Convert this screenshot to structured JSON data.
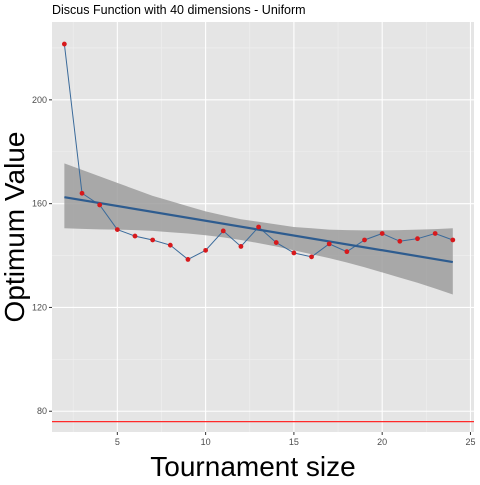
{
  "chart_data": {
    "type": "line",
    "title": "Discus Function with 40 dimensions -  Uniform",
    "xlabel": "Tournament size",
    "ylabel": "Optimum Value",
    "xlim": [
      1.3,
      25.2
    ],
    "ylim": [
      72,
      230
    ],
    "x_ticks": [
      5,
      10,
      15,
      20,
      25
    ],
    "y_ticks": [
      80,
      120,
      160,
      200
    ],
    "grid": true,
    "legend": "none",
    "series": [
      {
        "x": [
          2,
          3,
          4,
          5,
          6,
          7,
          8,
          9,
          10,
          11,
          12,
          13,
          14,
          15,
          16,
          17,
          18,
          19,
          20,
          21,
          22,
          23,
          24
        ],
        "values": [
          221.5,
          164,
          159.5,
          150,
          147.5,
          146,
          144,
          138.5,
          142,
          149.5,
          143.5,
          151,
          145,
          141,
          139.5,
          144.5,
          141.5,
          146,
          148.5,
          145.5,
          146.5,
          148.5,
          146
        ]
      }
    ],
    "trend": {
      "x": [
        2,
        24
      ],
      "values": [
        162.5,
        137.5
      ]
    },
    "confidence_band": {
      "x": [
        2,
        3,
        4,
        5,
        6,
        7,
        8,
        9,
        10,
        11,
        12,
        13,
        14,
        15,
        16,
        17,
        18,
        19,
        20,
        21,
        22,
        23,
        24
      ],
      "upper": [
        175.5,
        173,
        170.5,
        168,
        165.5,
        163,
        161,
        159,
        157,
        155.5,
        154,
        153,
        152,
        151,
        150.5,
        150,
        149.8,
        149.7,
        149.7,
        149.8,
        150,
        150.2,
        150.5
      ],
      "lower": [
        150.5,
        150.3,
        150.1,
        150,
        149.8,
        149.5,
        149,
        148.5,
        147.8,
        147,
        146,
        144.8,
        143.5,
        142,
        140.5,
        139,
        137.3,
        135.5,
        133.5,
        131.5,
        129.5,
        127.3,
        125
      ]
    },
    "reference_line": {
      "y": 76
    },
    "colors": {
      "panel": "#e5e5e5",
      "grid_major": "#ffffff",
      "grid_minor": "#f0f0f0",
      "band": "#9e9e9e",
      "trend": "#2e5c8f",
      "series_line": "#3a6a9a",
      "points": "#d7191c",
      "reference": "#ff2a2a",
      "tick_text": "#4d4d4d",
      "axis_text": "#000000"
    }
  }
}
